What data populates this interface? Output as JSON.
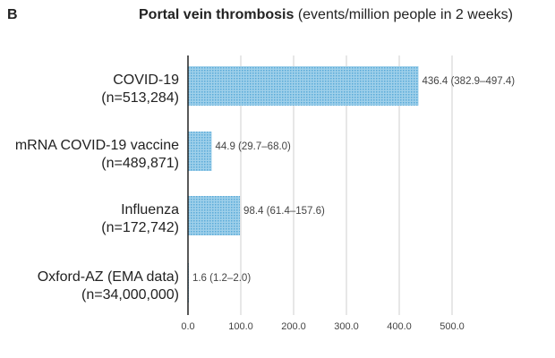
{
  "panel": {
    "letter": "B"
  },
  "chart_data": {
    "type": "bar",
    "orientation": "horizontal",
    "title": "Portal vein thrombosis",
    "subtitle": "(events/million people in 2 weeks)",
    "categories": [
      {
        "name": "COVID-19",
        "n": "(n=513,284)"
      },
      {
        "name": "mRNA COVID-19 vaccine",
        "n": "(n=489,871)"
      },
      {
        "name": "Influenza",
        "n": "(n=172,742)"
      },
      {
        "name": "Oxford-AZ (EMA data)",
        "n": "(n=34,000,000)"
      }
    ],
    "values": [
      436.4,
      44.9,
      98.4,
      1.6
    ],
    "labels": [
      "436.4 (382.9–497.4)",
      "44.9 (29.7–68.0)",
      "98.4 (61.4–157.6)",
      "1.6 (1.2–2.0)"
    ],
    "xticks": [
      "0.0",
      "100.0",
      "200.0",
      "300.0",
      "400.0",
      "500.0"
    ],
    "xlim": [
      0,
      500
    ],
    "grid": true,
    "colors": {
      "bar": "#9fd0ea",
      "bar_pattern": "#5aaad8",
      "grid": "#cfcfcf",
      "axis": "#222222"
    }
  }
}
